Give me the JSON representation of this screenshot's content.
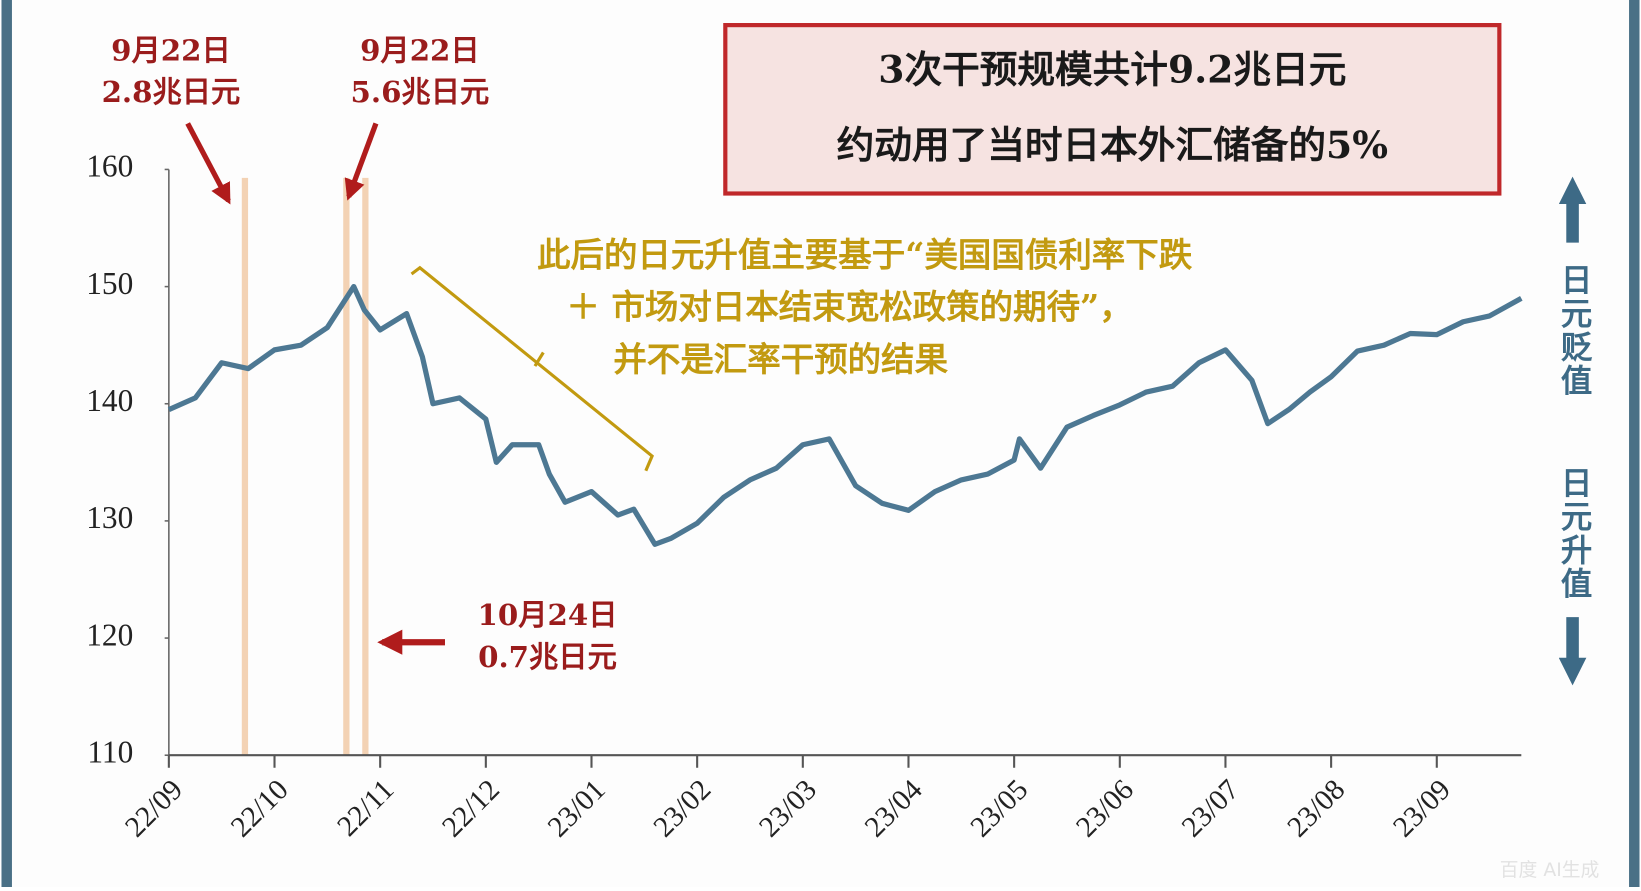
{
  "chart_data": {
    "type": "line",
    "color": "#4d7893",
    "x": [
      0,
      0.25,
      0.5,
      0.75,
      1.0,
      1.25,
      1.5,
      1.75,
      1.85,
      2.0,
      2.25,
      2.4,
      2.5,
      2.75,
      3.0,
      3.1,
      3.25,
      3.5,
      3.6,
      3.75,
      4.0,
      4.25,
      4.4,
      4.6,
      4.75,
      5.0,
      5.25,
      5.5,
      5.75,
      6.0,
      6.25,
      6.5,
      6.75,
      7.0,
      7.25,
      7.5,
      7.75,
      8.0,
      8.05,
      8.25,
      8.5,
      8.75,
      9.0,
      9.25,
      9.5,
      9.75,
      10.0,
      10.25,
      10.4,
      10.6,
      10.8,
      11.0,
      11.25,
      11.5,
      11.75,
      12.0,
      12.25,
      12.5,
      12.8
    ],
    "values": [
      139.5,
      140.5,
      143.5,
      143,
      144.6,
      145,
      146.5,
      150,
      148,
      146.3,
      147.7,
      144,
      140,
      140.5,
      138.7,
      135,
      136.5,
      136.5,
      134,
      131.6,
      132.5,
      130.5,
      131,
      128,
      128.5,
      129.8,
      132,
      133.5,
      134.5,
      136.5,
      137,
      133,
      131.5,
      130.9,
      132.5,
      133.5,
      134,
      135.2,
      137,
      134.5,
      138,
      139,
      139.9,
      141,
      141.5,
      143.5,
      144.6,
      142,
      138.3,
      139.5,
      141,
      142.3,
      144.5,
      145,
      146,
      145.9,
      147,
      147.5,
      149
    ],
    "xlim": [
      0,
      12.8
    ],
    "xticks": [
      {
        "value": 0,
        "label": "22/09"
      },
      {
        "value": 1,
        "label": "22/10"
      },
      {
        "value": 2,
        "label": "22/11"
      },
      {
        "value": 3,
        "label": "22/12"
      },
      {
        "value": 4,
        "label": "23/01"
      },
      {
        "value": 5,
        "label": "23/02"
      },
      {
        "value": 6,
        "label": "23/03"
      },
      {
        "value": 7,
        "label": "23/04"
      },
      {
        "value": 8,
        "label": "23/05"
      },
      {
        "value": 9,
        "label": "23/06"
      },
      {
        "value": 10,
        "label": "23/07"
      },
      {
        "value": 11,
        "label": "23/08"
      },
      {
        "value": 12,
        "label": "23/09"
      }
    ],
    "ylim": [
      110,
      160
    ],
    "yticks": [
      110,
      120,
      130,
      140,
      150,
      160
    ],
    "interventions": [
      {
        "x": 0.72,
        "date": "9月22日",
        "amount": "2.8兆日元"
      },
      {
        "x": 1.68,
        "date": "9月22日",
        "amount": "5.6兆日元"
      },
      {
        "x": 1.86,
        "date": "10月24日",
        "amount": "0.7兆日元"
      }
    ],
    "box_text": [
      "3次干预规模共计9.2兆日元",
      "约动用了当时日本外汇储备的5%"
    ],
    "note": [
      "此后的日元升值主要基于“美国国债利率下跌",
      "＋ 市场对日本结束宽松政策的期待”，",
      "并不是汇率干预的结果"
    ],
    "side_labels": [
      "日元贬值",
      "日元升值"
    ],
    "watermark": "百度 AI生成"
  }
}
